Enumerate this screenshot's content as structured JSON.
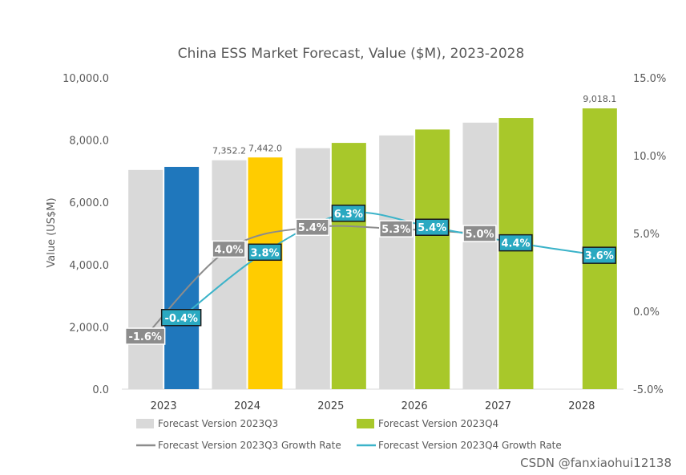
{
  "chart_data": {
    "type": "bar",
    "title": "China ESS Market Forecast, Value ($M), 2023-2028",
    "ylabel": "Value (US$M)",
    "ylim": [
      0,
      10000
    ],
    "y_ticks": [
      "0.0",
      "2,000.0",
      "4,000.0",
      "6,000.0",
      "8,000.0",
      "10,000.0"
    ],
    "y2lim": [
      -5.0,
      15.0
    ],
    "y2_ticks": [
      "-5.0%",
      "0.0%",
      "5.0%",
      "10.0%",
      "15.0%"
    ],
    "categories": [
      "2023",
      "2024",
      "2025",
      "2026",
      "2027",
      "2028"
    ],
    "series": [
      {
        "name": "Forecast Version 2023Q3",
        "kind": "bar",
        "color": "#d9d9d9",
        "values": [
          7040,
          7352.2,
          7740,
          8150,
          8560,
          null
        ],
        "labels": [
          "",
          "7,352.2",
          "",
          "",
          "",
          ""
        ]
      },
      {
        "name": "Forecast Version 2023Q4",
        "kind": "bar",
        "color": "#a8c82a",
        "point_colors": [
          "#1f77bc",
          "#ffcc00",
          "#a8c82a",
          "#a8c82a",
          "#a8c82a",
          "#a8c82a"
        ],
        "values": [
          7140,
          7442.0,
          7910,
          8340,
          8710,
          9018.1
        ],
        "labels": [
          "",
          "7,442.0",
          "",
          "",
          "",
          "9,018.1"
        ]
      },
      {
        "name": "Forecast Version 2023Q3 Growth Rate",
        "kind": "line",
        "axis": "right",
        "color": "#8c8c8c",
        "values": [
          -1.6,
          4.0,
          5.4,
          5.3,
          5.0,
          null
        ],
        "labels": [
          "-1.6%",
          "4.0%",
          "5.4%",
          "5.3%",
          "5.0%",
          ""
        ]
      },
      {
        "name": "Forecast Version 2023Q4 Growth Rate",
        "kind": "line",
        "axis": "right",
        "color": "#3bb3c9",
        "values": [
          -0.4,
          3.8,
          6.3,
          5.4,
          4.4,
          3.6
        ],
        "labels": [
          "-0.4%",
          "3.8%",
          "6.3%",
          "5.4%",
          "4.4%",
          "3.6%"
        ]
      }
    ],
    "legend": "bottom"
  },
  "watermark": "CSDN @fanxiaohui12138"
}
